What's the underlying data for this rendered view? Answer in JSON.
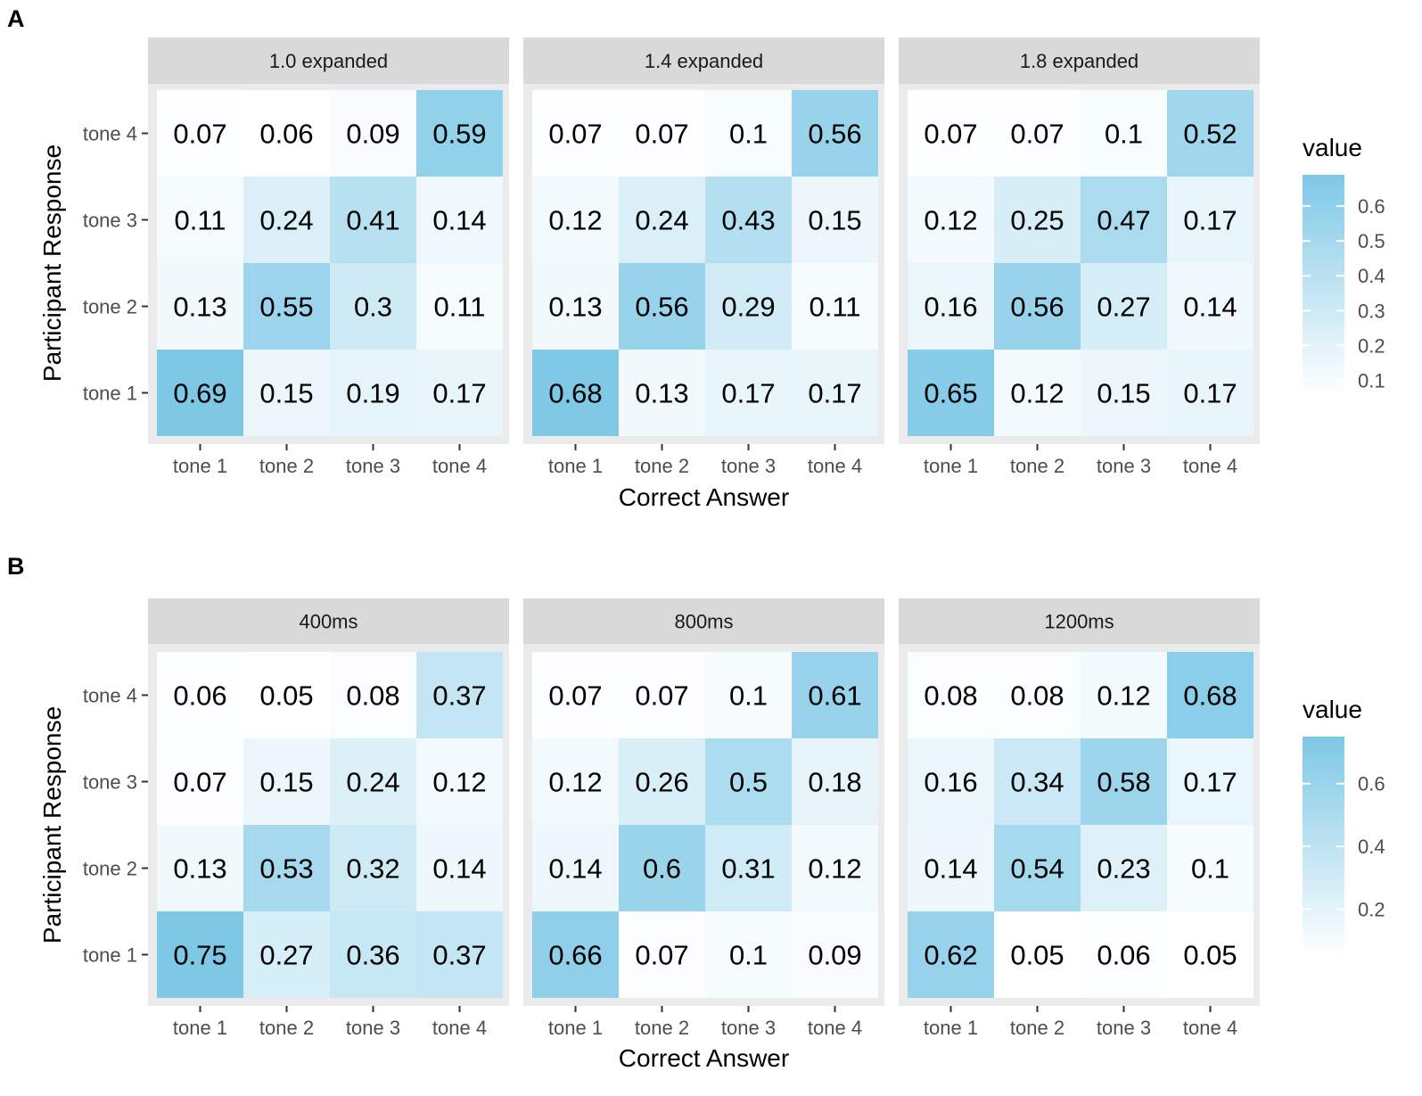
{
  "chart_data": [
    {
      "type": "heatmap",
      "panel_letter": "A",
      "xlabel": "Correct Answer",
      "ylabel": "Participant Response",
      "x_categories": [
        "tone 1",
        "tone 2",
        "tone 3",
        "tone 4"
      ],
      "y_categories": [
        "tone 1",
        "tone 2",
        "tone 3",
        "tone 4"
      ],
      "legend": {
        "title": "value",
        "ticks": [
          "0.6",
          "0.5",
          "0.4",
          "0.3",
          "0.2",
          "0.1"
        ],
        "tick_values": [
          0.6,
          0.5,
          0.4,
          0.3,
          0.2,
          0.1
        ],
        "range": [
          0.06,
          0.69
        ],
        "low_color": "#ffffff",
        "high_color": "#7ec8e6",
        "position": "right"
      },
      "facets": [
        {
          "label": "1.0 expanded",
          "values": [
            [
              0.69,
              0.15,
              0.19,
              0.17
            ],
            [
              0.13,
              0.55,
              0.3,
              0.11
            ],
            [
              0.11,
              0.24,
              0.41,
              0.14
            ],
            [
              0.07,
              0.06,
              0.09,
              0.59
            ]
          ]
        },
        {
          "label": "1.4 expanded",
          "values": [
            [
              0.68,
              0.13,
              0.17,
              0.17
            ],
            [
              0.13,
              0.56,
              0.29,
              0.11
            ],
            [
              0.12,
              0.24,
              0.43,
              0.15
            ],
            [
              0.07,
              0.07,
              0.1,
              0.56
            ]
          ]
        },
        {
          "label": "1.8 expanded",
          "values": [
            [
              0.65,
              0.12,
              0.15,
              0.17
            ],
            [
              0.16,
              0.56,
              0.27,
              0.14
            ],
            [
              0.12,
              0.25,
              0.47,
              0.17
            ],
            [
              0.07,
              0.07,
              0.1,
              0.52
            ]
          ]
        }
      ]
    },
    {
      "type": "heatmap",
      "panel_letter": "B",
      "xlabel": "Correct Answer",
      "ylabel": "Participant Response",
      "x_categories": [
        "tone 1",
        "tone 2",
        "tone 3",
        "tone 4"
      ],
      "y_categories": [
        "tone 1",
        "tone 2",
        "tone 3",
        "tone 4"
      ],
      "legend": {
        "title": "value",
        "ticks": [
          "0.6",
          "0.4",
          "0.2"
        ],
        "tick_values": [
          0.6,
          0.4,
          0.2
        ],
        "range": [
          0.05,
          0.75
        ],
        "low_color": "#ffffff",
        "high_color": "#7ec8e6",
        "position": "right"
      },
      "facets": [
        {
          "label": "400ms",
          "values": [
            [
              0.75,
              0.27,
              0.36,
              0.37
            ],
            [
              0.13,
              0.53,
              0.32,
              0.14
            ],
            [
              0.07,
              0.15,
              0.24,
              0.12
            ],
            [
              0.06,
              0.05,
              0.08,
              0.37
            ]
          ]
        },
        {
          "label": "800ms",
          "values": [
            [
              0.66,
              0.07,
              0.1,
              0.09
            ],
            [
              0.14,
              0.6,
              0.31,
              0.12
            ],
            [
              0.12,
              0.26,
              0.5,
              0.18
            ],
            [
              0.07,
              0.07,
              0.1,
              0.61
            ]
          ]
        },
        {
          "label": "1200ms",
          "values": [
            [
              0.62,
              0.05,
              0.06,
              0.05
            ],
            [
              0.14,
              0.54,
              0.23,
              0.1
            ],
            [
              0.16,
              0.34,
              0.58,
              0.17
            ],
            [
              0.08,
              0.08,
              0.12,
              0.68
            ]
          ]
        }
      ]
    }
  ]
}
